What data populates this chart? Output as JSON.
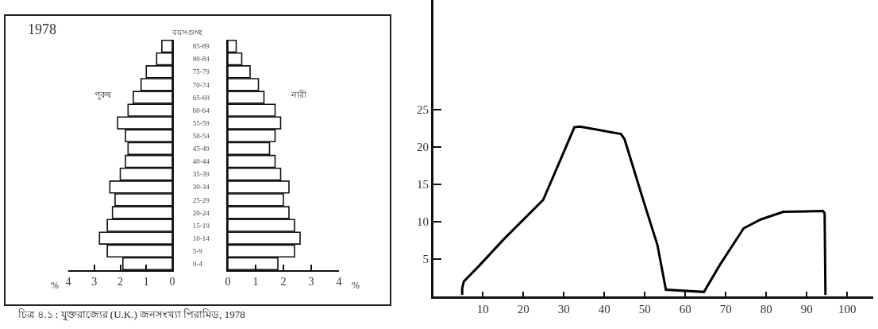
{
  "chart_data": [
    {
      "type": "bar",
      "orientation": "horizontal",
      "title": "1978",
      "xlabel": "%",
      "ylabel": "বয়সগুচ্ছ",
      "categories": [
        "85-89",
        "80-84",
        "75-79",
        "70-74",
        "65-69",
        "60-64",
        "55-59",
        "50-54",
        "45-49",
        "40-44",
        "35-39",
        "30-34",
        "25-29",
        "20-24",
        "15-19",
        "10-14",
        "5-9",
        "0-4"
      ],
      "series": [
        {
          "name": "পুরুষ",
          "color": "#ffffff",
          "values": [
            0.4,
            0.6,
            1.0,
            1.2,
            1.5,
            1.7,
            2.1,
            1.8,
            1.7,
            1.8,
            2.0,
            2.4,
            2.2,
            2.3,
            2.5,
            2.8,
            2.5,
            1.9
          ]
        }
      ],
      "xlim": [
        4,
        0
      ],
      "xticks": [
        4,
        3,
        2,
        1,
        0
      ],
      "grid": false,
      "legend": false,
      "annotations": [
        "চিত্র ৪.১ : যুক্তরাজ্যের (U.K.) জনসংখ্যা পিরামিড, 1978"
      ]
    },
    {
      "type": "bar",
      "orientation": "horizontal",
      "xlabel": "%",
      "categories": [
        null,
        null,
        null,
        null,
        null,
        null,
        null,
        null,
        null,
        null,
        null,
        null,
        null,
        null,
        null,
        null,
        null,
        null
      ],
      "series": [
        {
          "name": "নারী",
          "color": "#ffffff",
          "values": [
            0.3,
            0.5,
            0.8,
            1.1,
            1.3,
            1.7,
            1.9,
            1.7,
            1.5,
            1.7,
            1.9,
            2.2,
            2.0,
            2.2,
            2.4,
            2.6,
            2.4,
            1.8
          ]
        }
      ],
      "xlim": [
        0,
        4
      ],
      "xticks": [
        0,
        1,
        2,
        3,
        4
      ],
      "tick_labels": "x",
      "grid": false,
      "legend": false
    },
    {
      "type": "line",
      "x": [
        4.9,
        4.9,
        5.3,
        9.1,
        15.1,
        24.9,
        28.8,
        32.6,
        33.9,
        44.1,
        45,
        49.7,
        53.1,
        55.2,
        64.6,
        68.4,
        74.4,
        78.7,
        84.2,
        94,
        94.4,
        94.6
      ],
      "series": [
        {
          "color": "#000000",
          "values": [
            0.2,
            1.1,
            2.0,
            4.1,
            7.6,
            12.9,
            17.8,
            22.6,
            22.7,
            21.7,
            21,
            12.7,
            6.9,
            0.9,
            0.6,
            4.1,
            9.1,
            10.3,
            11.3,
            11.4,
            11.1,
            0.2
          ]
        }
      ],
      "xlim": [
        -2.2,
        106.4
      ],
      "ylim": [
        0,
        39.6
      ],
      "xticks": [
        10,
        20,
        30,
        40,
        50,
        60,
        70,
        80,
        90,
        100
      ],
      "yticks": [
        5,
        10,
        15,
        20,
        25
      ],
      "grid": false,
      "legend": false,
      "marker": "none",
      "line_style": "solid"
    }
  ]
}
